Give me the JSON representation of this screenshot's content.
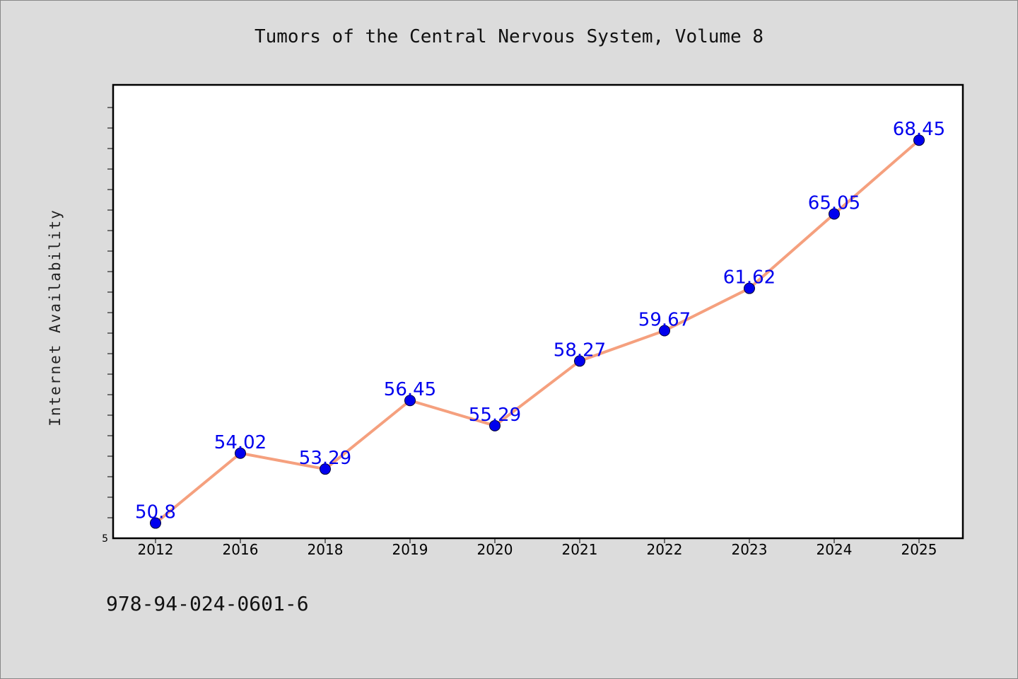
{
  "chart_data": {
    "type": "line",
    "title": "Tumors of the Central Nervous System, Volume 8",
    "xlabel": "",
    "ylabel": "Internet Availability",
    "categories": [
      "2012",
      "2016",
      "2018",
      "2019",
      "2020",
      "2021",
      "2022",
      "2023",
      "2024",
      "2025"
    ],
    "series": [
      {
        "values": [
          50.8,
          54.02,
          53.29,
          56.45,
          55.29,
          58.27,
          59.67,
          61.62,
          65.05,
          68.45
        ],
        "data_labels": [
          "50.8",
          "54.02",
          "53.29",
          "56.45",
          "55.29",
          "58.27",
          "59.67",
          "61.62",
          "65.05",
          "68.45"
        ],
        "line_color": "#f5a07e",
        "marker_color": "#0000ee"
      }
    ],
    "y_tick_labels": [
      "5"
    ],
    "ylim": [
      50.1,
      71.0
    ],
    "grid": false,
    "legend": "none"
  },
  "footer": {
    "isbn": "978-94-024-0601-6"
  },
  "colors": {
    "background": "#dcdcdc",
    "plot_background": "#ffffff",
    "data_label": "#0000ee"
  }
}
